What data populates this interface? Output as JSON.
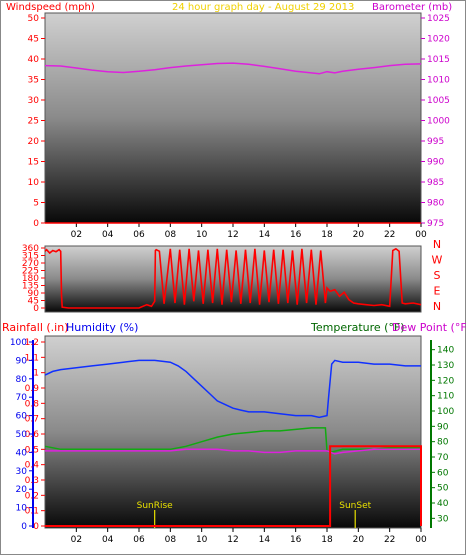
{
  "chart_data": [
    {
      "type": "line",
      "title_left": "Windspeed (mph)",
      "title_center": "24 hour graph day - August 29 2013",
      "title_right": "Barometer (mb)",
      "x_ticks": [
        "02",
        "04",
        "06",
        "08",
        "10",
        "12",
        "14",
        "16",
        "18",
        "20",
        "22",
        "00"
      ],
      "y_left_ticks": [
        "0",
        "5",
        "10",
        "15",
        "20",
        "25",
        "30",
        "35",
        "40",
        "45",
        "50"
      ],
      "y_left_lim": [
        0,
        50
      ],
      "y_right_ticks": [
        "975",
        "980",
        "985",
        "990",
        "995",
        "1000",
        "1005",
        "1010",
        "1015",
        "1020",
        "1025"
      ],
      "y_right_lim": [
        975,
        1025
      ],
      "series": [
        {
          "name": "Barometer",
          "color": "#dd22dd",
          "axis": "right",
          "x": [
            0,
            1,
            2,
            3,
            4,
            5,
            6,
            7,
            8,
            9,
            10,
            11,
            12,
            13,
            14,
            15,
            16,
            17,
            17.5,
            18,
            18.5,
            19,
            20,
            21,
            22,
            23,
            24
          ],
          "y": [
            1013.4,
            1013.3,
            1012.8,
            1012.3,
            1011.9,
            1011.7,
            1012.0,
            1012.4,
            1012.9,
            1013.3,
            1013.6,
            1013.9,
            1014.0,
            1013.7,
            1013.2,
            1012.6,
            1012.0,
            1011.6,
            1011.4,
            1011.9,
            1011.6,
            1012.0,
            1012.5,
            1012.9,
            1013.4,
            1013.7,
            1013.8
          ]
        },
        {
          "name": "Windspeed",
          "color": "#ff0000",
          "axis": "left",
          "x": [
            0,
            24
          ],
          "y": [
            0,
            0
          ]
        }
      ]
    },
    {
      "type": "line",
      "y_ticks": [
        "360",
        "315",
        "270",
        "225",
        "180",
        "135",
        "90",
        "45",
        "0"
      ],
      "ylim": [
        0,
        360
      ],
      "compass": [
        "N",
        "W",
        "S",
        "E",
        "N"
      ],
      "series": [
        {
          "name": "Wind direction",
          "color": "#ff0000",
          "x": [
            0,
            0.1,
            0.3,
            0.5,
            0.7,
            0.9,
            1.0,
            1.05,
            1.1,
            1.5,
            2,
            3,
            4,
            5,
            6,
            6.5,
            6.8,
            7.0,
            7.05,
            7.1,
            7.3,
            7.6,
            8.0,
            8.3,
            8.6,
            8.9,
            9.2,
            9.5,
            9.8,
            10.1,
            10.4,
            10.7,
            11.0,
            11.3,
            11.6,
            11.9,
            12.2,
            12.5,
            12.8,
            13.1,
            13.4,
            13.7,
            14.0,
            14.3,
            14.6,
            14.9,
            15.2,
            15.5,
            15.8,
            16.1,
            16.4,
            16.7,
            17.0,
            17.3,
            17.6,
            17.9,
            18.0,
            18.2,
            18.5,
            18.8,
            19.1,
            19.4,
            19.7,
            20.0,
            20.5,
            21.0,
            21.5,
            22.0,
            22.2,
            22.4,
            22.6,
            22.8,
            23.0,
            23.5,
            24.0
          ],
          "y": [
            340,
            350,
            330,
            345,
            338,
            350,
            340,
            80,
            5,
            0,
            0,
            0,
            0,
            0,
            0,
            20,
            10,
            40,
            345,
            350,
            340,
            25,
            355,
            30,
            350,
            20,
            355,
            40,
            345,
            25,
            350,
            30,
            355,
            20,
            350,
            35,
            345,
            25,
            350,
            30,
            355,
            20,
            345,
            35,
            350,
            25,
            350,
            30,
            345,
            20,
            355,
            30,
            350,
            20,
            345,
            30,
            120,
            100,
            110,
            70,
            95,
            50,
            30,
            25,
            20,
            15,
            20,
            10,
            345,
            355,
            340,
            30,
            25,
            30,
            20
          ]
        }
      ]
    },
    {
      "type": "line",
      "title_left": "Rainfall (.in)",
      "title_left2": "Humidity (%)",
      "title_right": "Temperature (°F)",
      "title_right2": "Dew Point (°F)",
      "x_ticks": [
        "02",
        "04",
        "06",
        "08",
        "10",
        "12",
        "14",
        "16",
        "18",
        "20",
        "22",
        "00"
      ],
      "rain_ticks": [
        "0",
        "0.1",
        "0.2",
        "0.3",
        "0.4",
        "0.5",
        "0.6",
        "0.7",
        "0.8",
        "0.9",
        "1",
        "1.1",
        "1.2"
      ],
      "rain_lim": [
        0,
        1.2
      ],
      "hum_ticks": [
        "0",
        "10",
        "20",
        "30",
        "40",
        "50",
        "60",
        "70",
        "80",
        "90",
        "100"
      ],
      "hum_lim": [
        0,
        100
      ],
      "temp_ticks": [
        "30",
        "40",
        "50",
        "60",
        "70",
        "80",
        "90",
        "100",
        "110",
        "120",
        "130",
        "140"
      ],
      "temp_lim": [
        25,
        145
      ],
      "annotations": [
        {
          "label": "SunRise",
          "x": 7.0
        },
        {
          "label": "SunSet",
          "x": 19.8
        }
      ],
      "series": [
        {
          "name": "Humidity",
          "color": "#1030ff",
          "axis": "humidity",
          "x": [
            0,
            0.5,
            1,
            2,
            3,
            4,
            5,
            6,
            7,
            8,
            8.5,
            9,
            9.5,
            10,
            10.5,
            11,
            11.5,
            12,
            12.5,
            13,
            14,
            15,
            16,
            17,
            17.5,
            18,
            18.1,
            18.3,
            18.5,
            19,
            20,
            21,
            22,
            23,
            24
          ],
          "y": [
            82,
            84,
            85,
            86,
            87,
            88,
            89,
            90,
            90,
            89,
            87,
            84,
            80,
            76,
            72,
            68,
            66,
            64,
            63,
            62,
            62,
            61,
            60,
            60,
            59,
            60,
            70,
            88,
            90,
            89,
            89,
            88,
            88,
            87,
            87
          ]
        },
        {
          "name": "Temperature",
          "color": "#11aa11",
          "axis": "temperature",
          "x": [
            0,
            1,
            2,
            3,
            4,
            5,
            6,
            7,
            8,
            9,
            10,
            11,
            12,
            13,
            14,
            15,
            16,
            17,
            17.9,
            18,
            18.2,
            19,
            20,
            21,
            22,
            23,
            24
          ],
          "y": [
            77,
            75,
            75,
            75,
            75,
            75,
            75,
            75,
            75,
            77,
            80,
            83,
            85,
            86,
            87,
            87,
            88,
            89,
            89,
            74,
            73,
            75,
            75,
            75,
            76,
            76,
            76
          ]
        },
        {
          "name": "Dew Point",
          "color": "#dd22dd",
          "axis": "temperature",
          "x": [
            0,
            1,
            2,
            3,
            4,
            5,
            6,
            7,
            8,
            9,
            10,
            11,
            12,
            13,
            14,
            15,
            16,
            17,
            18,
            18.5,
            19,
            20,
            21,
            22,
            23,
            24
          ],
          "y": [
            74,
            74,
            74,
            74,
            74,
            74,
            74,
            74,
            74,
            75,
            75,
            75,
            74,
            74,
            73,
            73,
            74,
            74,
            74,
            72,
            73,
            74,
            75,
            75,
            75,
            75
          ]
        },
        {
          "name": "Rainfall",
          "color": "#ff0000",
          "axis": "rainfall",
          "x": [
            0,
            18.2,
            18.2,
            24,
            24
          ],
          "y": [
            0,
            0,
            0.52,
            0.52,
            0
          ]
        }
      ]
    }
  ]
}
